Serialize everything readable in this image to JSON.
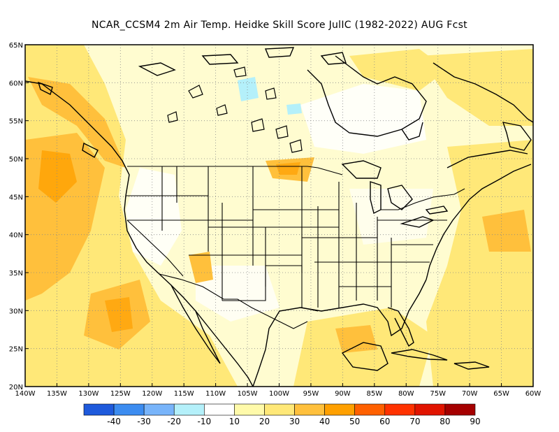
{
  "title": "NCAR_CCSM4  2m Air Temp. Heidke Skill Score JulIC (1982-2022) AUG Fcst",
  "map": {
    "lon_labels": [
      "140W",
      "135W",
      "130W",
      "125W",
      "120W",
      "115W",
      "110W",
      "105W",
      "100W",
      "95W",
      "90W",
      "85W",
      "80W",
      "75W",
      "70W",
      "65W",
      "60W"
    ],
    "lat_labels": [
      "65N",
      "60N",
      "55N",
      "50N",
      "45N",
      "40N",
      "35N",
      "30N",
      "25N",
      "20N"
    ],
    "lon_range": [
      -140,
      -60
    ],
    "lat_range": [
      20,
      65
    ],
    "ocean_color": "#ffffff",
    "coastline_color": "#000000"
  },
  "colorbar": {
    "labels": [
      "-40",
      "-30",
      "-20",
      "-10",
      "10",
      "20",
      "30",
      "40",
      "50",
      "60",
      "70",
      "80",
      "90"
    ],
    "colors": [
      "#1e5adc",
      "#3c8cf0",
      "#78b4fa",
      "#b4f0fa",
      "#ffffff",
      "#fffaaa",
      "#ffe878",
      "#ffc03c",
      "#ffa000",
      "#ff6000",
      "#ff3200",
      "#e11400",
      "#a50000"
    ]
  }
}
